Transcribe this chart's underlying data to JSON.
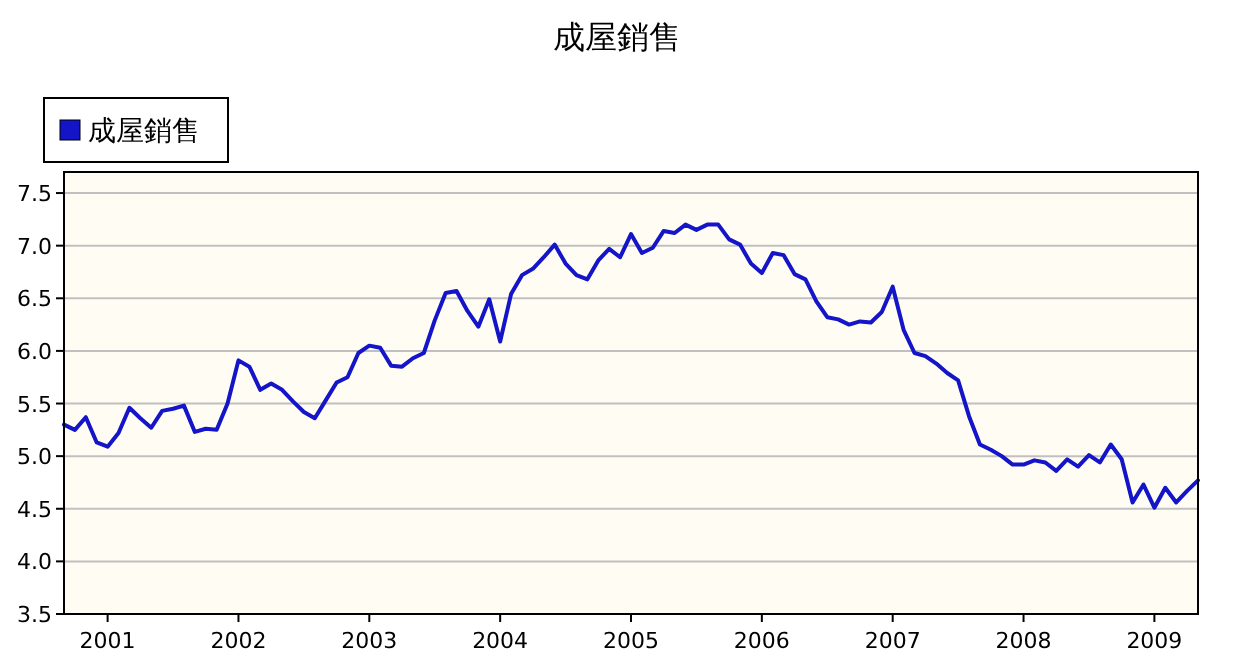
{
  "chart_data": {
    "type": "line",
    "title": "成屋銷售",
    "x": [
      "2000-09",
      "2000-10",
      "2000-11",
      "2000-12",
      "2001-01",
      "2001-02",
      "2001-03",
      "2001-04",
      "2001-05",
      "2001-06",
      "2001-07",
      "2001-08",
      "2001-09",
      "2001-10",
      "2001-11",
      "2001-12",
      "2002-01",
      "2002-02",
      "2002-03",
      "2002-04",
      "2002-05",
      "2002-06",
      "2002-07",
      "2002-08",
      "2002-09",
      "2002-10",
      "2002-11",
      "2002-12",
      "2003-01",
      "2003-02",
      "2003-03",
      "2003-04",
      "2003-05",
      "2003-06",
      "2003-07",
      "2003-08",
      "2003-09",
      "2003-10",
      "2003-11",
      "2003-12",
      "2004-01",
      "2004-02",
      "2004-03",
      "2004-04",
      "2004-05",
      "2004-06",
      "2004-07",
      "2004-08",
      "2004-09",
      "2004-10",
      "2004-11",
      "2004-12",
      "2005-01",
      "2005-02",
      "2005-03",
      "2005-04",
      "2005-05",
      "2005-06",
      "2005-07",
      "2005-08",
      "2005-09",
      "2005-10",
      "2005-11",
      "2005-12",
      "2006-01",
      "2006-02",
      "2006-03",
      "2006-04",
      "2006-05",
      "2006-06",
      "2006-07",
      "2006-08",
      "2006-09",
      "2006-10",
      "2006-11",
      "2006-12",
      "2007-01",
      "2007-02",
      "2007-03",
      "2007-04",
      "2007-05",
      "2007-06",
      "2007-07",
      "2007-08",
      "2007-09",
      "2007-10",
      "2007-11",
      "2007-12",
      "2008-01",
      "2008-02",
      "2008-03",
      "2008-04",
      "2008-05",
      "2008-06",
      "2008-07",
      "2008-08",
      "2008-09",
      "2008-10",
      "2008-11",
      "2008-12",
      "2009-01",
      "2009-02",
      "2009-03",
      "2009-04",
      "2009-05"
    ],
    "series": [
      {
        "name": "成屋銷售",
        "color": "#1414c8",
        "values": [
          5.3,
          5.25,
          5.37,
          5.13,
          5.09,
          5.22,
          5.46,
          5.36,
          5.27,
          5.43,
          5.45,
          5.48,
          5.23,
          5.26,
          5.25,
          5.5,
          5.91,
          5.85,
          5.63,
          5.69,
          5.63,
          5.52,
          5.42,
          5.36,
          5.53,
          5.7,
          5.75,
          5.98,
          6.05,
          6.03,
          5.86,
          5.85,
          5.93,
          5.98,
          6.29,
          6.55,
          6.57,
          6.38,
          6.23,
          6.49,
          6.09,
          6.54,
          6.72,
          6.78,
          6.89,
          7.01,
          6.83,
          6.72,
          6.68,
          6.86,
          6.97,
          6.89,
          7.11,
          6.93,
          6.98,
          7.14,
          7.12,
          7.2,
          7.15,
          7.2,
          7.2,
          7.06,
          7.01,
          6.83,
          6.74,
          6.93,
          6.91,
          6.73,
          6.68,
          6.47,
          6.32,
          6.3,
          6.25,
          6.28,
          6.27,
          6.37,
          6.61,
          6.2,
          5.98,
          5.95,
          5.88,
          5.79,
          5.72,
          5.38,
          5.11,
          5.06,
          5.0,
          4.92,
          4.92,
          4.96,
          4.94,
          4.86,
          4.97,
          4.9,
          5.01,
          4.94,
          5.11,
          4.97,
          4.56,
          4.73,
          4.51,
          4.7,
          4.56,
          4.67,
          4.77
        ]
      }
    ],
    "xlim": [
      "2000-09",
      "2009-05"
    ],
    "xticks": [
      "2001",
      "2002",
      "2003",
      "2004",
      "2005",
      "2006",
      "2007",
      "2008",
      "2009"
    ],
    "ylim": [
      3.5,
      7.7
    ],
    "yticks": [
      {
        "value": 3.5,
        "label": "3.5"
      },
      {
        "value": 4,
        "label": "4.0"
      },
      {
        "value": 4.5,
        "label": "4.5"
      },
      {
        "value": 5,
        "label": "5.0"
      },
      {
        "value": 5.5,
        "label": "5.5"
      },
      {
        "value": 6,
        "label": "6.0"
      },
      {
        "value": 6.5,
        "label": "6.5"
      },
      {
        "value": 7,
        "label": "7.0"
      },
      {
        "value": 7.5,
        "label": "7.5"
      }
    ],
    "grid": "y",
    "legend": "top left",
    "marker": "none",
    "line_style": "solid"
  }
}
